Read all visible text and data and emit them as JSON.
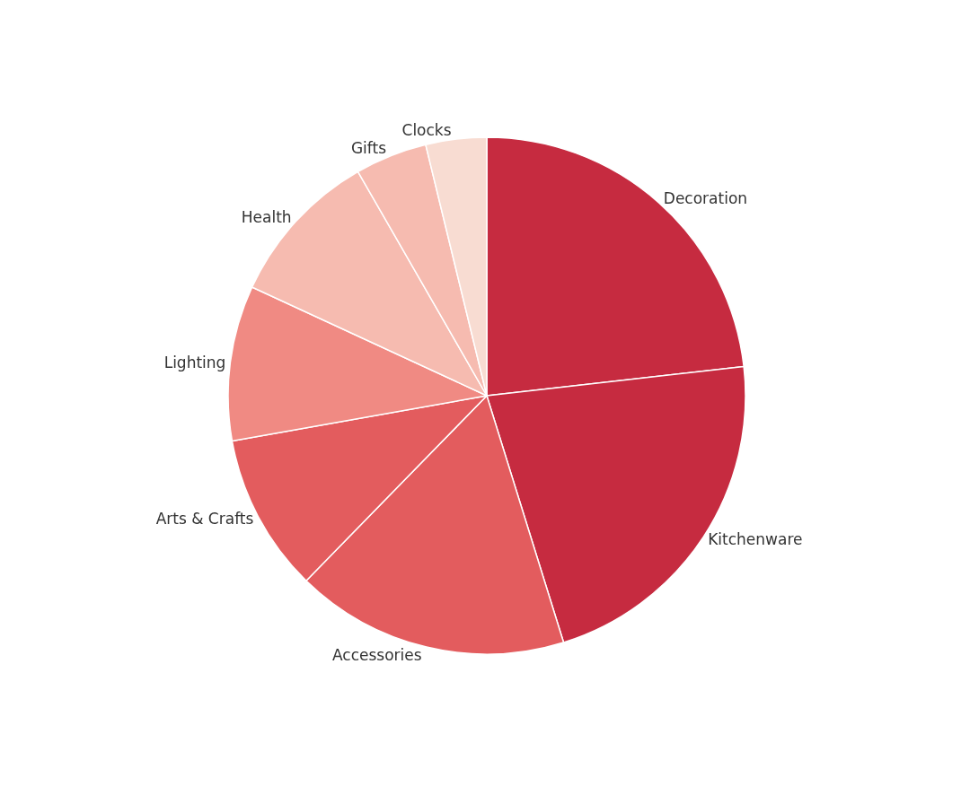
{
  "chart_data": {
    "type": "pie",
    "categories": [
      "Decoration",
      "Kitchenware",
      "Accessories",
      "Arts & Crafts",
      "Lighting",
      "Health",
      "Gifts",
      "Clocks"
    ],
    "values": [
      23.2,
      22.0,
      17.1,
      9.9,
      9.7,
      9.8,
      4.5,
      3.8
    ],
    "colors": [
      "#c62b40",
      "#c62b40",
      "#e35c5e",
      "#e35c5e",
      "#f08a83",
      "#f6bbb0",
      "#f6bbb0",
      "#f8dcd2"
    ]
  }
}
